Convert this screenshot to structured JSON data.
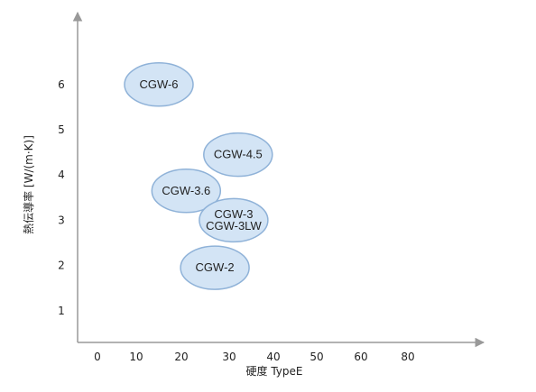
{
  "chart_data": {
    "type": "scatter",
    "title": "",
    "xlabel": "硬度 TypeE",
    "ylabel": "熱伝導率 [W/(m·K)]",
    "x_ticks": [
      "0",
      "10",
      "20",
      "30",
      "40",
      "50",
      "60",
      "80"
    ],
    "y_ticks": [
      "1",
      "2",
      "3",
      "4",
      "5",
      "6"
    ],
    "ylim": [
      0,
      7
    ],
    "grid": false,
    "colors": {
      "bubble_fill": "#d3e4f5",
      "bubble_stroke": "#8fb2d8",
      "axis": "#999999"
    },
    "points": [
      {
        "labels": [
          "CGW-6"
        ],
        "x": 15,
        "y": 6.0
      },
      {
        "labels": [
          "CGW-4.5"
        ],
        "x": 32,
        "y": 4.45
      },
      {
        "labels": [
          "CGW-3.6"
        ],
        "x": 21,
        "y": 3.65
      },
      {
        "labels": [
          "CGW-3",
          "CGW-3LW"
        ],
        "x": 31,
        "y": 3.0
      },
      {
        "labels": [
          "CGW-2"
        ],
        "x": 27,
        "y": 1.95
      }
    ]
  }
}
